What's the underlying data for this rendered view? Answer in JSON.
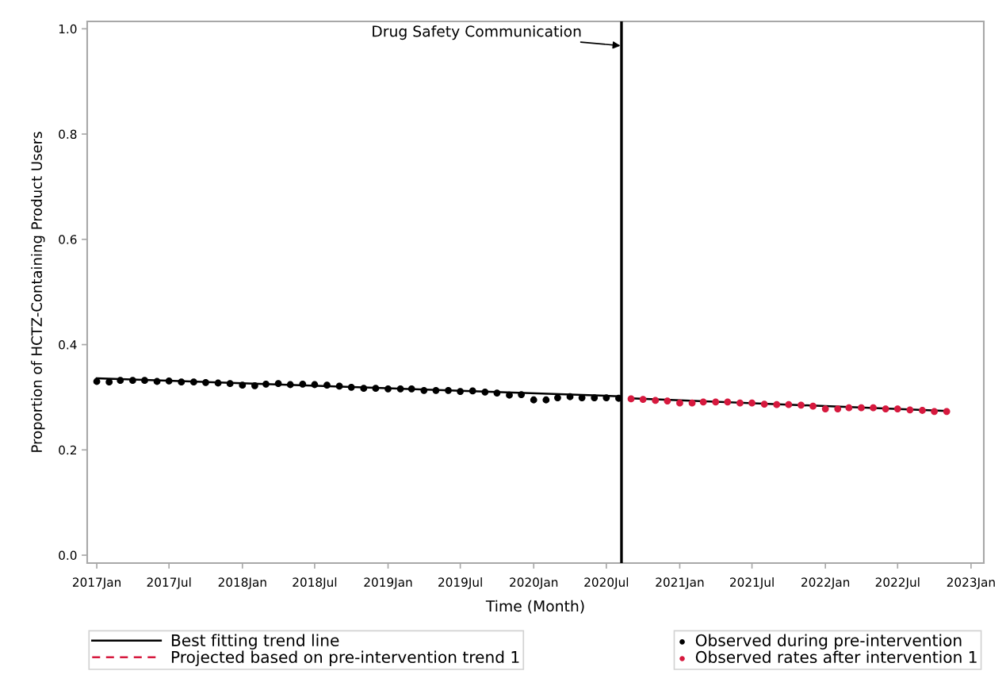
{
  "chart_data": {
    "type": "scatter",
    "xlabel": "Time (Month)",
    "ylabel": "Proportion of HCTZ-Containing Product Users",
    "xlim": [
      "2016-12-08",
      "2023-02-02"
    ],
    "xticks": [
      {
        "value": "2017-01",
        "label": "2017Jan"
      },
      {
        "value": "2017-07",
        "label": "2017Jul"
      },
      {
        "value": "2018-01",
        "label": "2018Jan"
      },
      {
        "value": "2018-07",
        "label": "2018Jul"
      },
      {
        "value": "2019-01",
        "label": "2019Jan"
      },
      {
        "value": "2019-07",
        "label": "2019Jul"
      },
      {
        "value": "2020-01",
        "label": "2020Jan"
      },
      {
        "value": "2020-07",
        "label": "2020Jul"
      },
      {
        "value": "2021-01",
        "label": "2021Jan"
      },
      {
        "value": "2021-07",
        "label": "2021Jul"
      },
      {
        "value": "2022-01",
        "label": "2022Jan"
      },
      {
        "value": "2022-07",
        "label": "2022Jul"
      },
      {
        "value": "2023-01",
        "label": "2023Jan"
      }
    ],
    "ylim": [
      -0.015,
      1.014
    ],
    "yticks": [
      {
        "value": 0,
        "label": "0.0"
      },
      0.2,
      0.4,
      0.6,
      0.8,
      {
        "value": 1,
        "label": "1.0"
      }
    ],
    "grid": false,
    "legend": "bottom",
    "ref_lines": [
      {
        "axis": "x",
        "value": "2020-08-08",
        "label": "Drug Safety Communication",
        "color": "#000000"
      }
    ],
    "series": [
      {
        "name": "Best fitting trend line",
        "type": "line",
        "line_style": "solid",
        "color": "#000000",
        "x": [
          "2017-01",
          "2020-08"
        ],
        "values": [
          0.336,
          0.302
        ]
      },
      {
        "type": "line",
        "line_style": "solid",
        "color": "#000000",
        "x": [
          "2020-09",
          "2022-11"
        ],
        "values": [
          0.298,
          0.274
        ]
      },
      {
        "name": "Projected based on pre-intervention trend 1",
        "type": "line",
        "line_style": "dashed",
        "color": "#d6193e",
        "values": [
          null
        ]
      },
      {
        "name": "Observed during pre-intervention",
        "marker": "circle",
        "color": "#000000",
        "x": [
          "2017-01",
          "2017-02",
          "2017-03",
          "2017-04",
          "2017-05",
          "2017-06",
          "2017-07",
          "2017-08",
          "2017-09",
          "2017-10",
          "2017-11",
          "2017-12",
          "2018-01",
          "2018-02",
          "2018-03",
          "2018-04",
          "2018-05",
          "2018-06",
          "2018-07",
          "2018-08",
          "2018-09",
          "2018-10",
          "2018-11",
          "2018-12",
          "2019-01",
          "2019-02",
          "2019-03",
          "2019-04",
          "2019-05",
          "2019-06",
          "2019-07",
          "2019-08",
          "2019-09",
          "2019-10",
          "2019-11",
          "2019-12",
          "2020-01",
          "2020-02",
          "2020-03",
          "2020-04",
          "2020-05",
          "2020-06",
          "2020-07",
          "2020-08"
        ],
        "values": [
          0.33,
          0.329,
          0.332,
          0.332,
          0.332,
          0.33,
          0.331,
          0.329,
          0.329,
          0.328,
          0.327,
          0.326,
          0.323,
          0.322,
          0.325,
          0.326,
          0.324,
          0.325,
          0.324,
          0.323,
          0.321,
          0.319,
          0.317,
          0.317,
          0.316,
          0.316,
          0.316,
          0.313,
          0.313,
          0.313,
          0.311,
          0.312,
          0.31,
          0.308,
          0.304,
          0.305,
          0.295,
          0.295,
          0.299,
          0.301,
          0.299,
          0.299,
          0.299,
          0.298
        ]
      },
      {
        "name": "Observed rates after intervention 1",
        "marker": "circle",
        "color": "#d6193e",
        "x": [
          "2020-09",
          "2020-10",
          "2020-11",
          "2020-12",
          "2021-01",
          "2021-02",
          "2021-03",
          "2021-04",
          "2021-05",
          "2021-06",
          "2021-07",
          "2021-08",
          "2021-09",
          "2021-10",
          "2021-11",
          "2021-12",
          "2022-01",
          "2022-02",
          "2022-03",
          "2022-04",
          "2022-05",
          "2022-06",
          "2022-07",
          "2022-08",
          "2022-09",
          "2022-10",
          "2022-11"
        ],
        "values": [
          0.297,
          0.296,
          0.294,
          0.293,
          0.289,
          0.289,
          0.291,
          0.291,
          0.291,
          0.289,
          0.289,
          0.287,
          0.286,
          0.286,
          0.285,
          0.283,
          0.278,
          0.278,
          0.28,
          0.28,
          0.28,
          0.278,
          0.278,
          0.276,
          0.275,
          0.273,
          0.273
        ]
      }
    ]
  }
}
